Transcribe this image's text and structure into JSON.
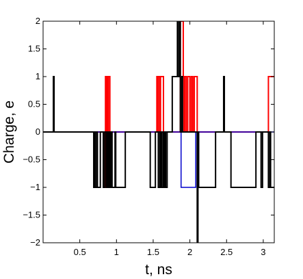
{
  "chart_data": {
    "type": "line",
    "title": "",
    "xlabel": "t, ns",
    "ylabel": "Charge, e",
    "xlim": [
      0,
      3.15
    ],
    "ylim": [
      -2,
      2
    ],
    "x_ticks": [
      0.5,
      1,
      1.5,
      2,
      2.5,
      3
    ],
    "x_tick_labels": [
      "0.5",
      "1",
      "1.5",
      "2",
      "2.5",
      "3"
    ],
    "y_ticks": [
      -2,
      -1.5,
      -1,
      -0.5,
      0,
      0.5,
      1,
      1.5,
      2
    ],
    "y_tick_labels": [
      "−2",
      "−1.5",
      "−1",
      "−0.5",
      "0",
      "0.5",
      "1",
      "1.5",
      "2"
    ],
    "grid": false,
    "legend": "none",
    "series": [
      {
        "color": "#ff0000",
        "line_width": 2,
        "points": [
          [
            0,
            0
          ],
          [
            0.84,
            0
          ],
          [
            0.84,
            -1
          ],
          [
            0.85,
            -1
          ],
          [
            0.85,
            1
          ],
          [
            0.86,
            1
          ],
          [
            0.86,
            0
          ],
          [
            0.87,
            0
          ],
          [
            0.87,
            1
          ],
          [
            0.88,
            1
          ],
          [
            0.88,
            0
          ],
          [
            0.89,
            0
          ],
          [
            0.89,
            1
          ],
          [
            0.91,
            1
          ],
          [
            0.91,
            0
          ],
          [
            1.55,
            0
          ],
          [
            1.55,
            1
          ],
          [
            1.56,
            1
          ],
          [
            1.56,
            0
          ],
          [
            1.57,
            0
          ],
          [
            1.57,
            1
          ],
          [
            1.59,
            1
          ],
          [
            1.59,
            0
          ],
          [
            1.6,
            0
          ],
          [
            1.6,
            1
          ],
          [
            1.64,
            1
          ],
          [
            1.64,
            0
          ],
          [
            1.87,
            0
          ],
          [
            1.87,
            2
          ],
          [
            1.91,
            2
          ],
          [
            1.91,
            1
          ],
          [
            1.92,
            1
          ],
          [
            1.92,
            0
          ],
          [
            1.93,
            0
          ],
          [
            1.93,
            1
          ],
          [
            1.95,
            1
          ],
          [
            1.95,
            0
          ],
          [
            1.97,
            0
          ],
          [
            1.97,
            1
          ],
          [
            2.0,
            1
          ],
          [
            2.0,
            0
          ],
          [
            2.02,
            0
          ],
          [
            2.02,
            1
          ],
          [
            2.04,
            1
          ],
          [
            2.04,
            0
          ],
          [
            2.06,
            0
          ],
          [
            2.06,
            1
          ],
          [
            2.1,
            1
          ],
          [
            2.1,
            0
          ],
          [
            3.07,
            0
          ],
          [
            3.07,
            1
          ],
          [
            3.15,
            1
          ]
        ]
      },
      {
        "color": "#0000cc",
        "line_width": 1.5,
        "points": [
          [
            0,
            0
          ],
          [
            1.88,
            0
          ],
          [
            1.88,
            -1
          ],
          [
            1.93,
            -1
          ],
          [
            1.93,
            -1
          ],
          [
            2.08,
            -1
          ],
          [
            2.08,
            0
          ],
          [
            3.15,
            0
          ]
        ]
      },
      {
        "color": "#000000",
        "line_width": 2,
        "points": [
          [
            0,
            0
          ],
          [
            0.14,
            0
          ],
          [
            0.14,
            1
          ],
          [
            0.15,
            1
          ],
          [
            0.15,
            0
          ],
          [
            0.69,
            0
          ],
          [
            0.69,
            -1
          ],
          [
            0.7,
            -1
          ],
          [
            0.7,
            0
          ],
          [
            0.71,
            0
          ],
          [
            0.71,
            -1
          ],
          [
            0.73,
            -1
          ],
          [
            0.73,
            0
          ],
          [
            0.74,
            0
          ],
          [
            0.74,
            -1
          ],
          [
            0.78,
            -1
          ],
          [
            0.78,
            0
          ],
          [
            0.82,
            0
          ],
          [
            0.82,
            -1
          ],
          [
            0.84,
            -1
          ],
          [
            0.84,
            0
          ],
          [
            0.86,
            0
          ],
          [
            0.86,
            -1
          ],
          [
            0.87,
            -1
          ],
          [
            0.87,
            0
          ],
          [
            0.88,
            0
          ],
          [
            0.88,
            -1
          ],
          [
            0.89,
            -1
          ],
          [
            0.89,
            0
          ],
          [
            0.9,
            0
          ],
          [
            0.9,
            -1
          ],
          [
            0.91,
            -1
          ],
          [
            0.91,
            0
          ],
          [
            0.92,
            0
          ],
          [
            0.92,
            -1
          ],
          [
            0.93,
            -1
          ],
          [
            0.93,
            0
          ],
          [
            0.94,
            0
          ],
          [
            0.94,
            -1
          ],
          [
            0.98,
            -1
          ],
          [
            0.98,
            0
          ],
          [
            0.99,
            0
          ],
          [
            0.99,
            -1
          ],
          [
            1.12,
            -1
          ],
          [
            1.12,
            0
          ],
          [
            1.46,
            0
          ],
          [
            1.46,
            -1
          ],
          [
            1.53,
            -1
          ],
          [
            1.53,
            0
          ],
          [
            1.57,
            0
          ],
          [
            1.57,
            -1
          ],
          [
            1.59,
            -1
          ],
          [
            1.59,
            0
          ],
          [
            1.6,
            0
          ],
          [
            1.6,
            -1
          ],
          [
            1.61,
            -1
          ],
          [
            1.61,
            0
          ],
          [
            1.62,
            0
          ],
          [
            1.62,
            -1
          ],
          [
            1.64,
            -1
          ],
          [
            1.64,
            0
          ],
          [
            1.65,
            0
          ],
          [
            1.65,
            -1
          ],
          [
            1.66,
            -1
          ],
          [
            1.66,
            0
          ],
          [
            1.67,
            0
          ],
          [
            1.67,
            -1
          ],
          [
            1.69,
            -1
          ],
          [
            1.69,
            0
          ],
          [
            1.76,
            0
          ],
          [
            1.76,
            1
          ],
          [
            1.83,
            1
          ],
          [
            1.83,
            2
          ],
          [
            1.84,
            2
          ],
          [
            1.84,
            1
          ],
          [
            1.86,
            1
          ],
          [
            1.86,
            2
          ],
          [
            1.87,
            2
          ],
          [
            1.87,
            0
          ],
          [
            1.89,
            0
          ],
          [
            1.89,
            1
          ],
          [
            1.9,
            1
          ],
          [
            1.9,
            0
          ],
          [
            2.1,
            0
          ],
          [
            2.1,
            -2
          ],
          [
            2.11,
            -2
          ],
          [
            2.11,
            0
          ],
          [
            2.12,
            0
          ],
          [
            2.12,
            -1
          ],
          [
            2.35,
            -1
          ],
          [
            2.35,
            0
          ],
          [
            2.46,
            0
          ],
          [
            2.46,
            1
          ],
          [
            2.47,
            1
          ],
          [
            2.47,
            0
          ],
          [
            2.56,
            0
          ],
          [
            2.56,
            -1
          ],
          [
            2.9,
            -1
          ],
          [
            2.9,
            0
          ],
          [
            2.97,
            0
          ],
          [
            2.97,
            -1
          ],
          [
            2.99,
            -1
          ],
          [
            2.99,
            0
          ],
          [
            3.07,
            0
          ],
          [
            3.07,
            -1
          ],
          [
            3.09,
            -1
          ],
          [
            3.09,
            0
          ],
          [
            3.1,
            0
          ],
          [
            3.1,
            -1
          ],
          [
            3.15,
            -1
          ]
        ]
      }
    ]
  }
}
